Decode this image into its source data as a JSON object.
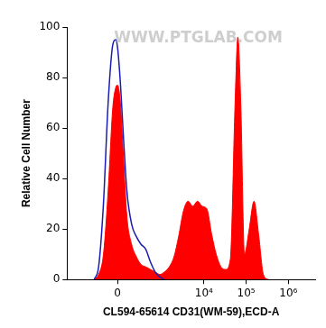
{
  "chart_data": {
    "type": "line",
    "x_label": "CL594-65614 CD31(WM-59),ECD-A",
    "y_label": "Relative Cell Number",
    "annotations": [
      "WWW.PTGLAB.COM"
    ],
    "log": "x",
    "grid": false,
    "xlim": [
      -1400,
      4300000
    ],
    "xticks": [
      0,
      {
        "value": 10000,
        "label": "10⁴"
      },
      {
        "value": 100000,
        "label": "10⁵"
      },
      {
        "value": 1000000,
        "label": "10⁶"
      }
    ],
    "ylim": [
      0,
      100
    ],
    "yticks": [
      0,
      20,
      40,
      60,
      80,
      100
    ],
    "series": [
      {
        "color": "#ff0000",
        "type": "area",
        "x": [
          -297,
          -220,
          -152,
          -96,
          -47,
          -18,
          0,
          28,
          57,
          96,
          152,
          220,
          297,
          400,
          525,
          688,
          897,
          1156,
          1505,
          1953,
          2511,
          3258,
          4230,
          5436,
          7038,
          9126,
          11718,
          15210,
          19530,
          25344,
          32850,
          42210,
          54720,
          63540,
          74520,
          91080,
          118080,
          153180,
          196740,
          255420,
          331560
        ],
        "values": [
          0,
          2,
          10,
          35,
          68,
          76,
          77,
          70,
          50,
          25,
          14,
          9,
          6,
          5,
          4,
          3,
          2,
          3,
          5,
          9,
          17,
          27,
          31,
          29,
          31,
          29,
          28,
          18,
          10,
          5,
          4,
          8,
          70,
          96,
          70,
          10,
          20,
          31,
          18,
          2,
          0
        ]
      },
      {
        "color": "#1c1cb0",
        "type": "line",
        "x": [
          -297,
          -220,
          -152,
          -96,
          -47,
          -18,
          0,
          28,
          57,
          96,
          152,
          220,
          297,
          400,
          525,
          688,
          897,
          1156
        ],
        "values": [
          0,
          5,
          30,
          70,
          93,
          95,
          92,
          78,
          58,
          35,
          22,
          17,
          14,
          12,
          7,
          3,
          1,
          0
        ]
      }
    ]
  }
}
